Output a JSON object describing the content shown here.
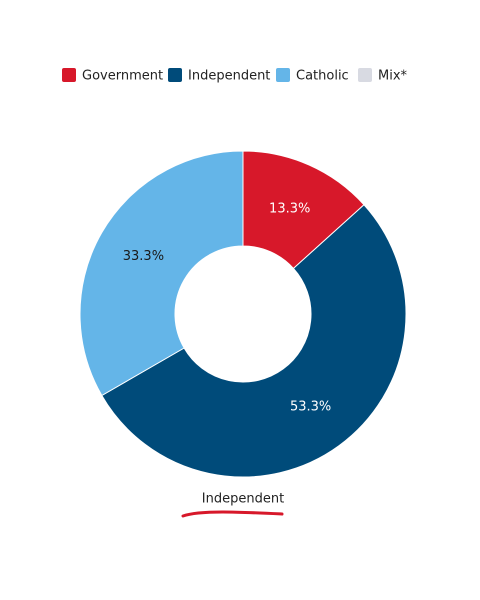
{
  "chart_data": {
    "type": "donut",
    "categories": [
      "Government",
      "Independent",
      "Catholic",
      "Mix*"
    ],
    "values": [
      13.3,
      53.3,
      33.3,
      0
    ],
    "value_labels": [
      "13.3%",
      "53.3%",
      "33.3%",
      null
    ],
    "colors": [
      "#d7182a",
      "#004b7a",
      "#64b5e8",
      "#d8dae2"
    ],
    "label_colors": [
      "#ffffff",
      "#ffffff",
      "#1a1a1a",
      "#1a1a1a"
    ],
    "annotation": "Independent"
  }
}
